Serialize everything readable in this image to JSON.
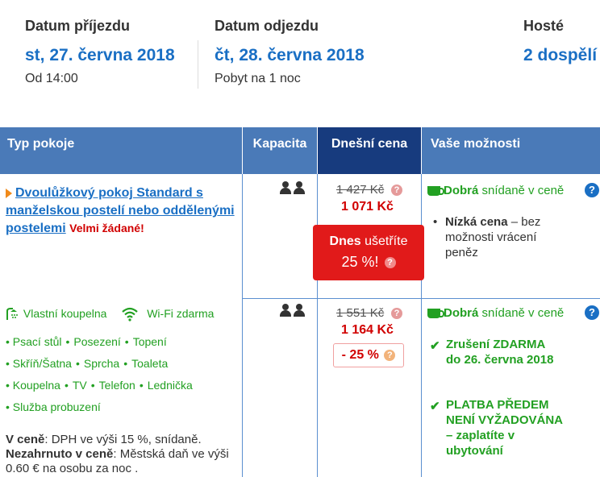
{
  "header": {
    "arrival_label": "Datum příjezdu",
    "arrival_date": "st, 27. června 2018",
    "arrival_time": "Od 14:00",
    "departure_label": "Datum odjezdu",
    "departure_date": "čt, 28. června 2018",
    "stay_length": "Pobyt na 1 noc",
    "guests_label": "Hosté",
    "guests_value": "2 dospělí"
  },
  "table": {
    "col_room": "Typ pokoje",
    "col_capacity": "Kapacita",
    "col_price": "Dnešní cena",
    "col_options": "Vaše možnosti"
  },
  "room": {
    "name": "Dvoulůžkový pokoj Standard s manželskou postelí nebo oddělenými postelemi",
    "demand": "Velmi žádané!",
    "amenity_bathroom": "Vlastní koupelna",
    "amenity_wifi": "Wi-Fi zdarma",
    "features_line1": [
      "Psací stůl",
      "Posezení",
      "Topení"
    ],
    "features_line2": [
      "Skříň/Šatna",
      "Sprcha",
      "Toaleta"
    ],
    "features_line3": [
      "Koupelna",
      "TV",
      "Telefon",
      "Lednička"
    ],
    "features_line4": [
      "Služba probuzení"
    ],
    "included_label": "V ceně",
    "included_text": ": DPH ve výši 15 %, snídaně.",
    "excluded_label": "Nezahrnuto v ceně",
    "excluded_text": ": Městská daň ve výši 0.60 € na osobu za noc ."
  },
  "offer1": {
    "old_price": "1 427 Kč",
    "new_price": "1 071 Kč",
    "save_label_bold": "Dnes",
    "save_label": "ušetříte",
    "save_pct": "25 %!",
    "breakfast_bold": "Dobrá",
    "breakfast_text": "snídaně v ceně",
    "low_price_bold": "Nízká cena",
    "low_price_text": " – bez možnosti vrácení peněz"
  },
  "offer2": {
    "old_price": "1 551 Kč",
    "new_price": "1 164 Kč",
    "discount": "- 25 %",
    "breakfast_bold": "Dobrá",
    "breakfast_text": "snídaně v ceně",
    "cancel_text": "Zrušení ZDARMA do 26. června 2018",
    "prepay_bold": "PLATBA PŘEDEM NENÍ VYŽADOVÁNA",
    "prepay_text": " – zaplatíte v ubytování"
  },
  "colors": {
    "header_bg": "#4a7ab8",
    "today_bg": "#173b7e",
    "link": "#1a6fc4",
    "price_red": "#d10000",
    "green": "#22a022"
  }
}
